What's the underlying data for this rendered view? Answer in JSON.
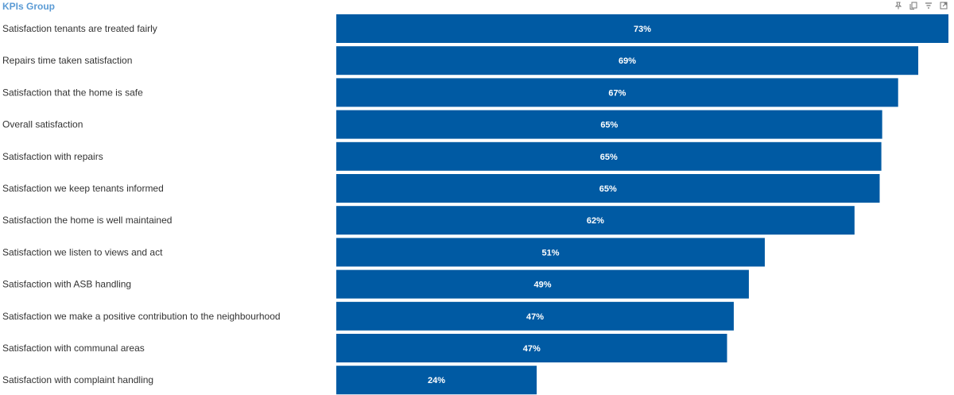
{
  "header": {
    "title": "KPIs Group",
    "icons": [
      "pin-icon",
      "copy-icon",
      "filter-icon",
      "expand-icon"
    ]
  },
  "colors": {
    "bar": "#005aa3",
    "title": "#5b9bd5",
    "label": "#333333"
  },
  "chart_data": {
    "type": "bar",
    "orientation": "horizontal",
    "title": "",
    "xlabel": "",
    "ylabel": "",
    "xlim": [
      0,
      73
    ],
    "grid": false,
    "legend": "none",
    "categories": [
      "Satisfaction tenants are treated fairly",
      "Repairs time taken satisfaction",
      "Satisfaction that the home is safe",
      "Overall satisfaction",
      "Satisfaction with repairs",
      "Satisfaction we keep tenants informed",
      "Satisfaction the home is well maintained",
      "Satisfaction we listen to views and act",
      "Satisfaction with ASB handling",
      "Satisfaction we make a positive contribution to the neighbourhood",
      "Satisfaction with communal areas",
      "Satisfaction with complaint handling"
    ],
    "values": [
      73,
      69.4,
      67,
      65.1,
      65,
      64.8,
      61.8,
      51.1,
      49.2,
      47.4,
      46.6,
      23.9
    ],
    "data_labels": [
      "73%",
      "69%",
      "67%",
      "65%",
      "65%",
      "65%",
      "62%",
      "51%",
      "49%",
      "47%",
      "47%",
      "24%"
    ]
  }
}
